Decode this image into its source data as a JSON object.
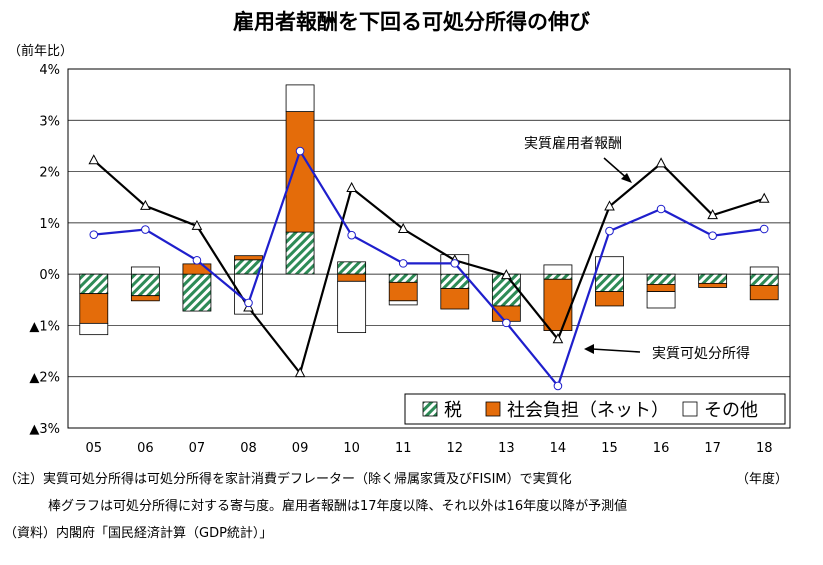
{
  "title": "雇用者報酬を下回る可処分所得の伸び",
  "unit_label": "（前年比）",
  "notes": {
    "line1": "（注）実質可処分所得は可処分所得を家計消費デフレーター（除く帰属家賃及びFISIM）で実質化",
    "fiscal_year": "（年度）",
    "line2": "棒グラフは可処分所得に対する寄与度。雇用者報酬は17年度以降、それ以外は16年度以降が予測値",
    "source": "（資料）内閣府「国民経済計算（GDP統計）」"
  },
  "colors": {
    "tax": "#2e8b57",
    "social": "#e46c0a",
    "other": "#ffffff",
    "compensation_line": "#000000",
    "income_line": "#1f1fcc"
  },
  "chart_data": {
    "type": "bar",
    "stacked": true,
    "categories": [
      "05",
      "06",
      "07",
      "08",
      "09",
      "10",
      "11",
      "12",
      "13",
      "14",
      "15",
      "16",
      "17",
      "18"
    ],
    "ylim": [
      -3,
      4
    ],
    "yticks": [
      {
        "value": 4,
        "label": "4%"
      },
      {
        "value": 3,
        "label": "3%"
      },
      {
        "value": 2,
        "label": "2%"
      },
      {
        "value": 1,
        "label": "1%"
      },
      {
        "value": 0,
        "label": "0%"
      },
      {
        "value": -1,
        "label": "▲1%"
      },
      {
        "value": -2,
        "label": "▲2%"
      },
      {
        "value": -3,
        "label": "▲3%"
      }
    ],
    "grid": true,
    "legend_position": "bottom-right",
    "series": [
      {
        "name": "税",
        "kind": "bar",
        "pattern": "hatch",
        "values": [
          -0.38,
          -0.42,
          -0.72,
          0.28,
          0.82,
          0.24,
          -0.16,
          -0.28,
          -0.62,
          -0.1,
          -0.34,
          -0.2,
          -0.18,
          -0.22
        ]
      },
      {
        "name": "社会負担（ネット）",
        "kind": "bar",
        "values": [
          -0.58,
          -0.1,
          0.2,
          0.08,
          2.35,
          -0.14,
          -0.36,
          -0.4,
          -0.3,
          -1.0,
          -0.28,
          -0.14,
          -0.08,
          -0.28
        ]
      },
      {
        "name": "その他",
        "kind": "bar",
        "values": [
          -0.22,
          0.14,
          0.0,
          -0.78,
          0.52,
          -1.0,
          -0.08,
          0.38,
          0.0,
          0.18,
          0.34,
          -0.32,
          0.0,
          0.14
        ]
      },
      {
        "name": "実質雇用者報酬",
        "kind": "line",
        "marker": "triangle",
        "values": [
          2.22,
          1.33,
          0.94,
          -0.65,
          -1.93,
          1.68,
          0.88,
          0.27,
          -0.02,
          -1.27,
          1.32,
          2.16,
          1.15,
          1.47
        ]
      },
      {
        "name": "実質可処分所得",
        "kind": "line",
        "marker": "circle",
        "values": [
          0.77,
          0.87,
          0.27,
          -0.56,
          2.4,
          0.76,
          0.21,
          0.21,
          -0.95,
          -2.18,
          0.84,
          1.27,
          0.75,
          0.88
        ]
      }
    ],
    "annotations": [
      {
        "text": "実質雇用者報酬",
        "series": "実質雇用者報酬"
      },
      {
        "text": "実質可処分所得",
        "series": "実質可処分所得"
      }
    ]
  }
}
